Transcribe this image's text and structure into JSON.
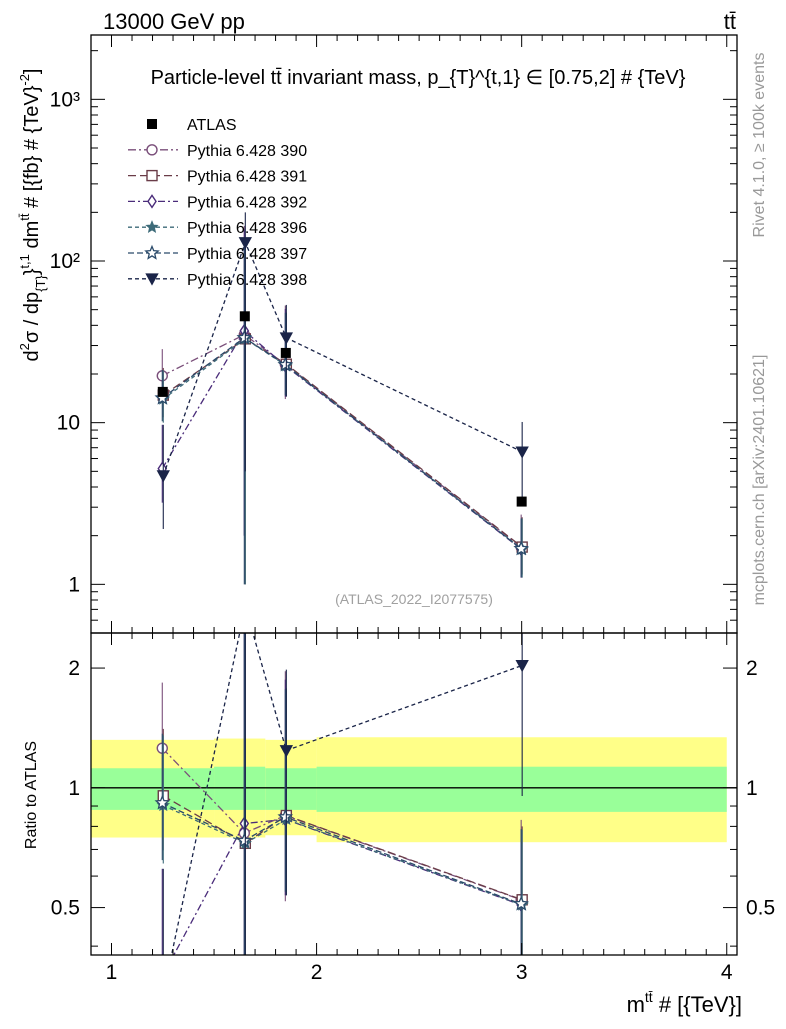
{
  "header": {
    "left": "13000 GeV pp",
    "right": "tt̄"
  },
  "side_texts": {
    "rivet": "Rivet 4.1.0, ≥ 100k events",
    "mcplots": "mcplots.cern.ch [arXiv:2401.10621]"
  },
  "chart_data": {
    "type": "scatter",
    "title": "Particle-level tt̄ invariant mass, p_{T}^{t,1} ∈ [0.75,2] # {TeV}",
    "watermark": "(ATLAS_2022_I2077575)",
    "xlabel": "m^{tt̄} # [{TeV}]",
    "xlabel_parts": {
      "main": "m",
      "sup": "tt̄",
      "rest": " # [{TeV}]"
    },
    "ylabel": "d²σ / dp_{T}^{t,1} dm^{tt̄} # [{fb} # {TeV}^{-2}]",
    "ylabel_parts": {
      "p1": "d",
      "p1sup": "2",
      "p2": "σ / dp",
      "p2sub": "{T}",
      "p3": "}",
      "p3sup": "t,1",
      "p4": " dm",
      "p4sup": "tt̄",
      "p5": " # [{fb} # {TeV}",
      "p5sup": "-2",
      "p6": "]"
    },
    "ratio_ylabel": "Ratio to ATLAS",
    "xlim": [
      0.9,
      4.05
    ],
    "ylim": [
      0.5,
      2500
    ],
    "ylog": true,
    "ratio_ylim": [
      0.38,
      2.45
    ],
    "ratio_ylog": true,
    "x_ticks": [
      1,
      2,
      3,
      4
    ],
    "x_tick_labels": [
      "1",
      "2",
      "3",
      "4"
    ],
    "y_ticks": [
      1,
      10,
      100,
      1000
    ],
    "y_tick_labels": [
      "1",
      "10",
      "10²",
      "10³"
    ],
    "ratio_ticks": [
      0.5,
      1,
      2
    ],
    "ratio_tick_labels": [
      "0.5",
      "1",
      "2"
    ],
    "bins": [
      {
        "lo": 0.9,
        "hi": 1.5
      },
      {
        "lo": 1.5,
        "hi": 1.75
      },
      {
        "lo": 1.75,
        "hi": 2.0
      },
      {
        "lo": 2.0,
        "hi": 4.0
      }
    ],
    "x": [
      1.25,
      1.65,
      1.85,
      3.0
    ],
    "data": {
      "name": "ATLAS",
      "values": [
        15.5,
        45.5,
        27.0,
        3.25
      ],
      "errors": [
        0.5,
        1.5,
        1.0,
        0.15
      ],
      "band_stat_syst": [
        [
          0.88,
          1.12
        ],
        [
          0.88,
          1.13
        ],
        [
          0.88,
          1.12
        ],
        [
          0.87,
          1.13
        ]
      ],
      "band_total": [
        [
          0.75,
          1.32
        ],
        [
          0.75,
          1.33
        ],
        [
          0.76,
          1.32
        ],
        [
          0.73,
          1.34
        ]
      ]
    },
    "series": [
      {
        "name": "Pythia 6.428 390",
        "color": "#7a4f7a",
        "dash": "8,3,2,3",
        "marker": "circle-open",
        "values": [
          19.5,
          35.0,
          23.0,
          1.7
        ],
        "err_lo": [
          5.0,
          33.0,
          9.0,
          0.6
        ],
        "err_hi": [
          9.0,
          130.0,
          30.0,
          1.0
        ]
      },
      {
        "name": "Pythia 6.428 391",
        "color": "#6a3c48",
        "dash": "8,4",
        "marker": "square-open",
        "values": [
          14.8,
          33.0,
          23.0,
          1.7
        ],
        "err_lo": [
          4.0,
          32.0,
          8.5,
          0.55
        ],
        "err_hi": [
          7.0,
          100.0,
          25.0,
          0.9
        ]
      },
      {
        "name": "Pythia 6.428 392",
        "color": "#4a2c7a",
        "dash": "7,3,2,3",
        "marker": "diamond-open",
        "values": [
          5.2,
          37.0,
          22.5,
          1.65
        ],
        "err_lo": [
          2.0,
          35.0,
          8.0,
          0.55
        ],
        "err_hi": [
          4.5,
          120.0,
          28.0,
          0.9
        ]
      },
      {
        "name": "Pythia 6.428 396",
        "color": "#3c6a78",
        "dash": "4,3",
        "marker": "star-filled",
        "values": [
          14.0,
          33.0,
          22.5,
          1.65
        ],
        "err_lo": [
          4.0,
          32.0,
          8.0,
          0.55
        ],
        "err_hi": [
          7.0,
          100.0,
          25.0,
          0.9
        ]
      },
      {
        "name": "Pythia 6.428 397",
        "color": "#2a4a6a",
        "dash": "6,3",
        "marker": "star-open",
        "values": [
          14.2,
          33.5,
          22.8,
          1.66
        ],
        "err_lo": [
          4.0,
          32.5,
          8.0,
          0.55
        ],
        "err_hi": [
          7.0,
          100.0,
          25.0,
          0.9
        ]
      },
      {
        "name": "Pythia 6.428 398",
        "color": "#1a2448",
        "dash": "4,3",
        "marker": "tri-down-filled",
        "values": [
          4.7,
          130.0,
          33.5,
          6.6
        ],
        "err_lo": [
          2.5,
          125.0,
          19.0,
          3.5
        ],
        "err_hi": [
          5.0,
          70.0,
          20.0,
          3.5
        ]
      }
    ]
  }
}
